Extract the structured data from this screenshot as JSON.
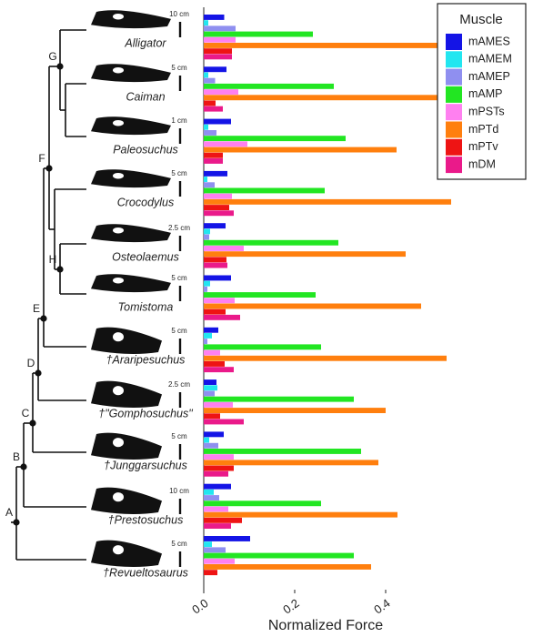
{
  "chart_data": {
    "type": "bar",
    "orientation": "horizontal",
    "xlabel": "Normalized Force",
    "legend_title": "Muscle",
    "legend": "top-right",
    "categories": [
      "Alligator",
      "Caiman",
      "Paleosuchus",
      "Crocodylus",
      "Osteolaemus",
      "Tomistoma",
      "†Araripesuchus",
      "†\"Gomphosuchus\"",
      "†Junggarsuchus",
      "†Prestosuchus",
      "†Revueltosaurus"
    ],
    "xlim": [
      0,
      0.57
    ],
    "xticks": [
      {
        "value": 0,
        "label": "0.0"
      },
      0.2,
      0.4
    ],
    "series": [
      {
        "name": "mAMES",
        "color": "#1414e6",
        "values": [
          0.045,
          0.05,
          0.06,
          0.052,
          0.048,
          0.06,
          0.032,
          0.028,
          0.044,
          0.06,
          0.102
        ]
      },
      {
        "name": "mAMEM",
        "color": "#22e6f0",
        "values": [
          0.01,
          0.01,
          0.01,
          0.008,
          0.014,
          0.014,
          0.018,
          0.03,
          0.012,
          0.022,
          0.018
        ]
      },
      {
        "name": "mAMEP",
        "color": "#8f8ff0",
        "values": [
          0.07,
          0.025,
          0.028,
          0.024,
          0.012,
          0.008,
          0.008,
          0.024,
          0.032,
          0.034,
          0.048
        ]
      },
      {
        "name": "mAMP",
        "color": "#22e622",
        "values": [
          0.24,
          0.286,
          0.312,
          0.266,
          0.296,
          0.246,
          0.258,
          0.33,
          0.346,
          0.258,
          0.33
        ]
      },
      {
        "name": "mPSTs",
        "color": "#ff80f0",
        "values": [
          0.07,
          0.076,
          0.096,
          0.062,
          0.088,
          0.068,
          0.036,
          0.064,
          0.066,
          0.054,
          0.068
        ]
      },
      {
        "name": "mPTd",
        "color": "#ff7f0e",
        "values": [
          0.558,
          0.552,
          0.424,
          0.544,
          0.444,
          0.478,
          0.534,
          0.4,
          0.384,
          0.426,
          0.368
        ]
      },
      {
        "name": "mPTv",
        "color": "#ee1414",
        "values": [
          0.062,
          0.026,
          0.042,
          0.056,
          0.05,
          0.048,
          0.046,
          0.036,
          0.066,
          0.084,
          0.03
        ]
      },
      {
        "name": "mDM",
        "color": "#ea1a8a",
        "values": [
          0.062,
          0.042,
          0.042,
          0.066,
          0.052,
          0.08,
          0.066,
          0.088,
          0.054,
          0.06,
          0
        ]
      }
    ]
  },
  "scale_bars": [
    "10 cm",
    "5 cm",
    "1 cm",
    "5 cm",
    "2.5 cm",
    "5 cm",
    "5 cm",
    "2.5 cm",
    "5 cm",
    "10 cm",
    "5 cm"
  ],
  "tree": {
    "nodes": [
      "A",
      "B",
      "C",
      "D",
      "E",
      "F",
      "G",
      "H"
    ]
  }
}
